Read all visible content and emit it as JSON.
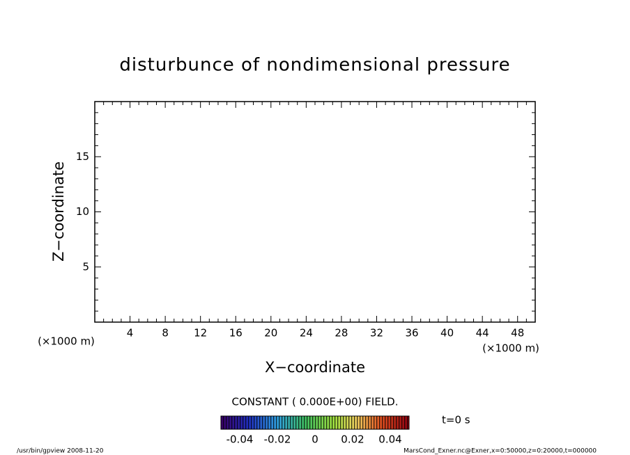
{
  "chart_data": {
    "type": "empty",
    "title": "disturbunce of nondimensional pressure",
    "x_label": "X−coordinate",
    "y_label": "Z−coordinate",
    "x_units": "(×1000 m)",
    "y_units": "(×1000 m)",
    "xlim": [
      0,
      50
    ],
    "ylim": [
      0,
      20
    ],
    "xticks": [
      4,
      8,
      12,
      16,
      20,
      24,
      28,
      32,
      36,
      40,
      44,
      48
    ],
    "yticks": [
      5,
      10,
      15
    ],
    "xminorticks": [
      1,
      2,
      3,
      5,
      6,
      7,
      9,
      10,
      11,
      13,
      14,
      15,
      17,
      18,
      19,
      21,
      22,
      23,
      25,
      26,
      27,
      29,
      30,
      31,
      33,
      34,
      35,
      37,
      38,
      39,
      41,
      42,
      43,
      45,
      46,
      47,
      49
    ],
    "yminorticks": [
      1,
      2,
      3,
      4,
      6,
      7,
      8,
      9,
      11,
      12,
      13,
      14,
      16,
      17,
      18,
      19
    ],
    "field_note": "CONSTANT ( 0.000E+00) FIELD.",
    "time_label": "t=0 s",
    "colorbar": {
      "lim": [
        -0.05,
        0.05
      ],
      "ticks": [
        -0.04,
        -0.02,
        0,
        0.02,
        0.04
      ]
    },
    "footer_left": "/usr/bin/gpview   2008-11-20",
    "footer_right": "MarsCond_Exner.nc@Exner,x=0:50000,z=0:20000,t=000000"
  }
}
